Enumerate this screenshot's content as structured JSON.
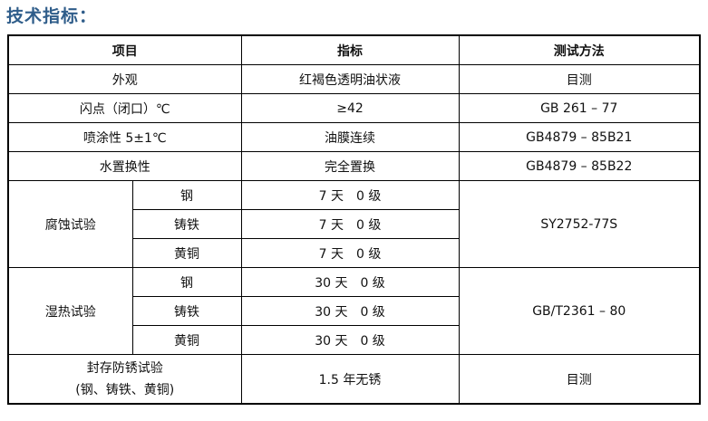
{
  "title": "技术指标：",
  "table": {
    "headers": [
      "项目",
      "指标",
      "测试方法"
    ],
    "rows": [
      {
        "item": "外观",
        "value": "红褐色透明油状液",
        "method": "目测"
      },
      {
        "item": "闪点（闭口）℃",
        "value": "≥42",
        "method": "GB 261 – 77"
      },
      {
        "item": "喷涂性 5±1℃",
        "value": "油膜连续",
        "method": "GB4879 – 85B21"
      },
      {
        "item": "水置换性",
        "value": "完全置换",
        "method": "GB4879 – 85B22"
      }
    ],
    "groups": [
      {
        "item": "腐蚀试验",
        "method": "SY2752-77S",
        "sub": [
          {
            "material": "钢",
            "value": "7 天　0 级"
          },
          {
            "material": "铸铁",
            "value": "7 天　0 级"
          },
          {
            "material": "黄铜",
            "value": "7 天　0 级"
          }
        ]
      },
      {
        "item": "湿热试验",
        "method": "GB/T2361 – 80",
        "sub": [
          {
            "material": "钢",
            "value": "30 天　0 级"
          },
          {
            "material": "铸铁",
            "value": "30 天　0 级"
          },
          {
            "material": "黄铜",
            "value": "30 天　0 级"
          }
        ]
      }
    ],
    "last": {
      "item_line1": "封存防锈试验",
      "item_line2": "(钢、铸铁、黄铜)",
      "value": "1.5 年无锈",
      "method": "目测"
    }
  }
}
